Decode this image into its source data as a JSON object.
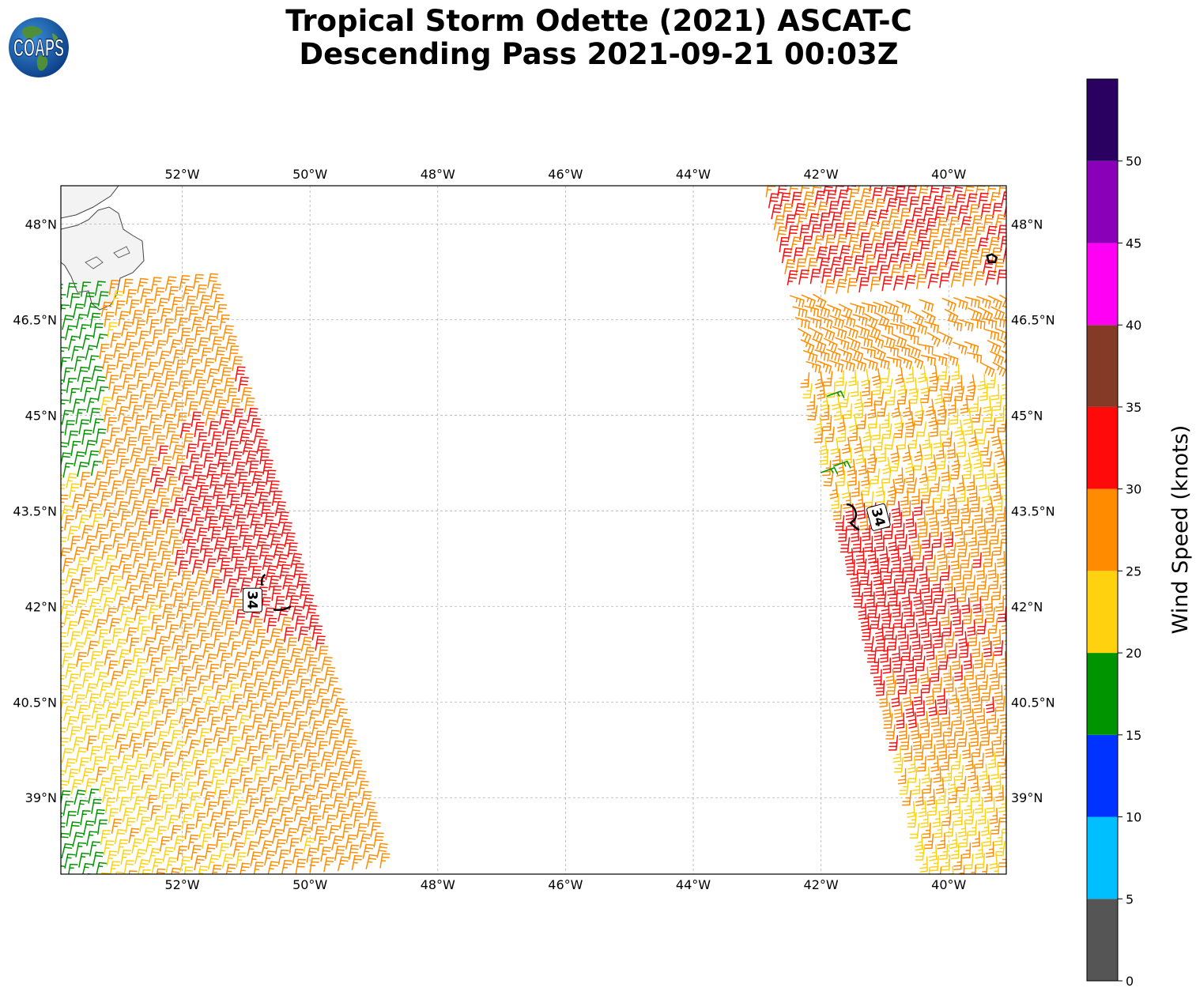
{
  "title": {
    "line1": "Tropical Storm Odette (2021) ASCAT-C",
    "line2": "Descending Pass 2021-09-21 00:03Z"
  },
  "logo": {
    "text": "COAPS",
    "icon": "globe-icon"
  },
  "map": {
    "lon_range": [
      -53.9,
      -39.1
    ],
    "lat_range": [
      37.8,
      48.6
    ],
    "lon_ticks": [
      {
        "value": -52,
        "label": "52°W"
      },
      {
        "value": -50,
        "label": "50°W"
      },
      {
        "value": -48,
        "label": "48°W"
      },
      {
        "value": -46,
        "label": "46°W"
      },
      {
        "value": -44,
        "label": "44°W"
      },
      {
        "value": -42,
        "label": "42°W"
      },
      {
        "value": -40,
        "label": "40°W"
      }
    ],
    "lat_ticks": [
      {
        "value": 48,
        "label": "48°N"
      },
      {
        "value": 46.5,
        "label": "46.5°N"
      },
      {
        "value": 45,
        "label": "45°N"
      },
      {
        "value": 43.5,
        "label": "43.5°N"
      },
      {
        "value": 42,
        "label": "42°N"
      },
      {
        "value": 40.5,
        "label": "40.5°N"
      },
      {
        "value": 39,
        "label": "39°N"
      }
    ],
    "gridlines": true,
    "coastline": "Newfoundland (upper-left)",
    "wind_barbs_encoding": "speed in knots, color by colorbar"
  },
  "contours": [
    {
      "label": "34",
      "lon": -50.9,
      "lat": 42.1
    },
    {
      "label": "34",
      "lon": -41.1,
      "lat": 43.4
    }
  ],
  "colorbar": {
    "label": "Wind Speed (knots)",
    "range": [
      0,
      55
    ],
    "bins": [
      {
        "from": 0,
        "to": 5,
        "color": "#555555"
      },
      {
        "from": 5,
        "to": 10,
        "color": "#00BFFF"
      },
      {
        "from": 10,
        "to": 15,
        "color": "#0033FF"
      },
      {
        "from": 15,
        "to": 20,
        "color": "#009400"
      },
      {
        "from": 20,
        "to": 25,
        "color": "#FFD20F"
      },
      {
        "from": 25,
        "to": 30,
        "color": "#FF8C00"
      },
      {
        "from": 30,
        "to": 35,
        "color": "#FF0A0A"
      },
      {
        "from": 35,
        "to": 40,
        "color": "#833A26"
      },
      {
        "from": 40,
        "to": 45,
        "color": "#FF00F5"
      },
      {
        "from": 45,
        "to": 50,
        "color": "#8A00B8"
      },
      {
        "from": 50,
        "to": 55,
        "color": "#2A0060"
      }
    ],
    "ticks": [
      {
        "value": 0,
        "label": "0"
      },
      {
        "value": 5,
        "label": "5"
      },
      {
        "value": 10,
        "label": "10"
      },
      {
        "value": 15,
        "label": "15"
      },
      {
        "value": 20,
        "label": "20"
      },
      {
        "value": 25,
        "label": "25"
      },
      {
        "value": 30,
        "label": "30"
      },
      {
        "value": 35,
        "label": "35"
      },
      {
        "value": 40,
        "label": "40"
      },
      {
        "value": 45,
        "label": "45"
      },
      {
        "value": 50,
        "label": "50"
      }
    ]
  }
}
